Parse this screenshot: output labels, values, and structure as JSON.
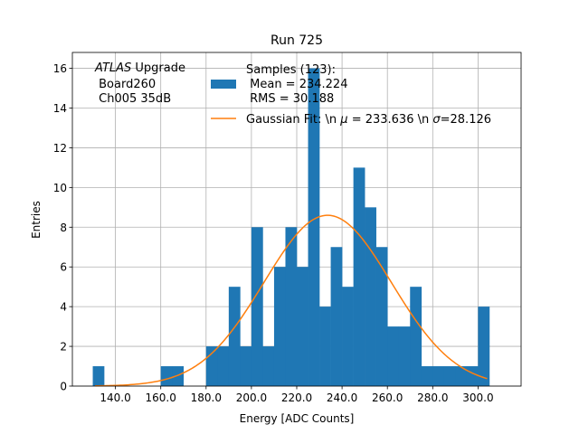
{
  "chart_data": {
    "type": "bar",
    "title": "Run 725",
    "xlabel": "Energy [ADC Counts]",
    "ylabel": "Entries",
    "xlim": [
      121,
      319
    ],
    "ylim": [
      0,
      16.8
    ],
    "xticks": [
      140,
      160,
      180,
      200,
      220,
      240,
      260,
      280,
      300
    ],
    "xtick_labels": [
      "140.0",
      "160.0",
      "180.0",
      "200.0",
      "220.0",
      "240.0",
      "260.0",
      "280.0",
      "300.0"
    ],
    "yticks": [
      0,
      2,
      4,
      6,
      8,
      10,
      12,
      14,
      16
    ],
    "ytick_labels": [
      "0",
      "2",
      "4",
      "6",
      "8",
      "10",
      "12",
      "14",
      "16"
    ],
    "grid": true,
    "bin_width": 5,
    "bin_starts": [
      130,
      135,
      140,
      145,
      150,
      155,
      160,
      165,
      170,
      175,
      180,
      185,
      190,
      195,
      200,
      205,
      210,
      215,
      220,
      225,
      230,
      235,
      240,
      245,
      250,
      255,
      260,
      265,
      270,
      275,
      280,
      285,
      290,
      295,
      300
    ],
    "counts": [
      1,
      0,
      0,
      0,
      0,
      0,
      1,
      1,
      0,
      0,
      2,
      2,
      5,
      2,
      8,
      2,
      6,
      8,
      6,
      16,
      4,
      7,
      5,
      11,
      9,
      7,
      3,
      3,
      5,
      1,
      1,
      1,
      1,
      1,
      4
    ],
    "bar_color": "#1f77b4",
    "fit": {
      "type": "gaussian",
      "mu": 233.636,
      "sigma": 28.126,
      "amplitude": 8.6,
      "x_range": [
        131,
        304
      ],
      "color": "#ff7f0e"
    },
    "legend": {
      "placement": "top-right",
      "entries": [
        {
          "lines": [
            "Samples (123):",
            " Mean = 234.224",
            " RMS = 30.188"
          ]
        },
        {
          "text_prefix": "Gaussian Fit: \\n ",
          "mu_symbol": "μ",
          "mu_text": " = 233.636 \\n ",
          "sigma_symbol": "σ",
          "sigma_text": "=28.126"
        }
      ]
    },
    "annotation": {
      "experiment": "ATLAS",
      "line1_rest": " Upgrade",
      "line2": " Board260",
      "line3": " Ch005 35dB"
    }
  }
}
